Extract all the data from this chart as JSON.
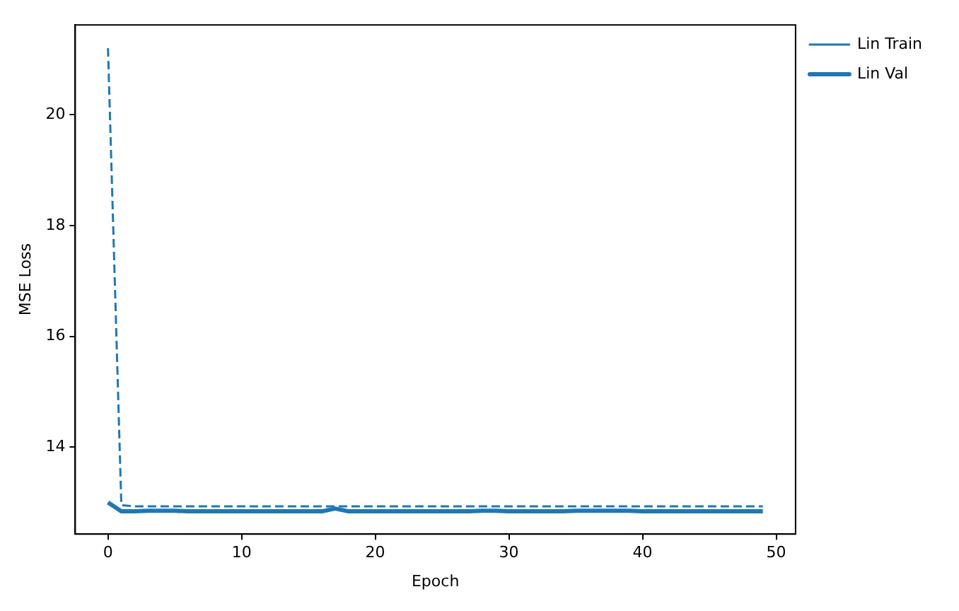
{
  "chart_data": {
    "type": "line",
    "xlabel": "Epoch",
    "ylabel": "MSE Loss",
    "x": [
      0,
      1,
      2,
      3,
      4,
      5,
      6,
      7,
      8,
      9,
      10,
      11,
      12,
      13,
      14,
      15,
      16,
      17,
      18,
      19,
      20,
      21,
      22,
      23,
      24,
      25,
      26,
      27,
      28,
      29,
      30,
      31,
      32,
      33,
      34,
      35,
      36,
      37,
      38,
      39,
      40,
      41,
      42,
      43,
      44,
      45,
      46,
      47,
      48,
      49
    ],
    "series": [
      {
        "name": "Lin Train",
        "color": "#1f77b4",
        "line_style": "dashed",
        "values": [
          21.2,
          12.95,
          12.93,
          12.93,
          12.93,
          12.93,
          12.93,
          12.93,
          12.93,
          12.93,
          12.93,
          12.93,
          12.93,
          12.93,
          12.93,
          12.93,
          12.93,
          12.93,
          12.93,
          12.93,
          12.93,
          12.93,
          12.93,
          12.93,
          12.93,
          12.93,
          12.93,
          12.93,
          12.93,
          12.93,
          12.93,
          12.93,
          12.93,
          12.93,
          12.93,
          12.93,
          12.93,
          12.93,
          12.93,
          12.93,
          12.93,
          12.93,
          12.93,
          12.93,
          12.93,
          12.93,
          12.93,
          12.93,
          12.93,
          12.93
        ]
      },
      {
        "name": "Lin Val",
        "color": "#1f77b4",
        "line_style": "solid",
        "values": [
          13.0,
          12.84,
          12.84,
          12.85,
          12.85,
          12.85,
          12.84,
          12.84,
          12.84,
          12.84,
          12.84,
          12.84,
          12.84,
          12.84,
          12.84,
          12.84,
          12.84,
          12.89,
          12.84,
          12.84,
          12.84,
          12.84,
          12.84,
          12.84,
          12.84,
          12.84,
          12.84,
          12.84,
          12.85,
          12.85,
          12.84,
          12.84,
          12.84,
          12.84,
          12.84,
          12.85,
          12.85,
          12.85,
          12.85,
          12.85,
          12.84,
          12.84,
          12.84,
          12.84,
          12.84,
          12.84,
          12.84,
          12.84,
          12.84,
          12.84
        ]
      }
    ],
    "xlim": [
      -2.45,
      51.45
    ],
    "xticks": [
      0,
      10,
      20,
      30,
      40,
      50
    ],
    "ylim": [
      12.43,
      21.62
    ],
    "yticks": [
      14,
      16,
      18,
      20
    ],
    "grid": false,
    "legend": "top right"
  }
}
